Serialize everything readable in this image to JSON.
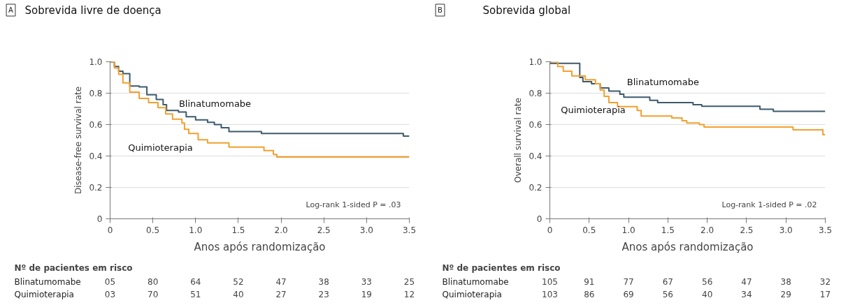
{
  "chart_data": [
    {
      "type": "step",
      "title": "Sobrevida livre de doença",
      "xlabel": "Anos após randomização",
      "ylabel": "Disease-free survival rate",
      "xlim": [
        0,
        3.5
      ],
      "ylim": [
        0,
        1.0
      ],
      "xticks": [
        0,
        0.5,
        {
          "value": 1,
          "label": "1.0"
        },
        1.5,
        {
          "value": 2,
          "label": "2.0"
        },
        2.5,
        {
          "value": 3,
          "label": "3.0"
        },
        3.5
      ],
      "yticks": [
        0,
        0.2,
        0.4,
        0.6,
        0.8,
        {
          "value": 1,
          "label": "1.0"
        }
      ],
      "grid": "y",
      "annotations": [
        "A",
        "Log-rank 1-sided P = .03",
        "Nº de pacientes em risco",
        "Blinatumomabe 05 80 64 52 47 38 33 25",
        "Quimioterapia 03 70 51 40 27 23 19 12"
      ],
      "series": [
        {
          "name": "Blinatumomabe",
          "color": "#3d5a6c",
          "x": [
            0,
            0.05,
            0.1,
            0.15,
            0.23,
            0.34,
            0.43,
            0.54,
            0.62,
            0.66,
            0.8,
            0.89,
            1.0,
            1.14,
            1.22,
            1.3,
            1.39,
            1.77,
            3.43,
            3.5
          ],
          "values": [
            1.0,
            0.97,
            0.94,
            0.925,
            0.846,
            0.84,
            0.79,
            0.76,
            0.727,
            0.69,
            0.68,
            0.65,
            0.63,
            0.615,
            0.6,
            0.58,
            0.556,
            0.543,
            0.527,
            0.527
          ]
        },
        {
          "name": "Quimioterapia",
          "color": "#f2a02e",
          "x": [
            0,
            0.05,
            0.1,
            0.15,
            0.23,
            0.34,
            0.45,
            0.56,
            0.65,
            0.73,
            0.84,
            0.87,
            0.92,
            1.03,
            1.14,
            1.39,
            1.8,
            1.91,
            1.95,
            3.5
          ],
          "values": [
            1.0,
            0.96,
            0.92,
            0.866,
            0.807,
            0.767,
            0.74,
            0.708,
            0.668,
            0.635,
            0.61,
            0.57,
            0.543,
            0.503,
            0.483,
            0.457,
            0.434,
            0.41,
            0.393,
            0.393
          ]
        }
      ]
    },
    {
      "type": "step",
      "title": "Sobrevida global",
      "xlabel": "Anos após randomização",
      "ylabel": "Overall survival rate",
      "xlim": [
        0,
        3.5
      ],
      "ylim": [
        0,
        1.0
      ],
      "xticks": [
        0,
        0.5,
        {
          "value": 1,
          "label": "1.0"
        },
        1.5,
        {
          "value": 2,
          "label": "2.0"
        },
        2.5,
        {
          "value": 3,
          "label": "3.0"
        },
        3.5
      ],
      "yticks": [
        0,
        0.2,
        0.4,
        0.6,
        0.8,
        {
          "value": 1,
          "label": "1.0"
        }
      ],
      "grid": "y",
      "annotations": [
        "B",
        "Log-rank 1-sided P = .02",
        "Nº de pacientes em risco",
        "Blinatumomabe 105 91 77 67 56 47 38 32",
        "Quimioterapia 103 86 69 56 40 34 29 17"
      ],
      "series": [
        {
          "name": "Blinatumomabe",
          "color": "#3d5a6c",
          "x": [
            0,
            0.38,
            0.42,
            0.53,
            0.64,
            0.75,
            0.89,
            0.94,
            1.27,
            1.37,
            1.82,
            1.93,
            2.67,
            2.84,
            3.5
          ],
          "values": [
            0.99,
            0.9,
            0.873,
            0.86,
            0.833,
            0.813,
            0.793,
            0.774,
            0.754,
            0.74,
            0.727,
            0.717,
            0.698,
            0.684,
            0.684
          ]
        },
        {
          "name": "Quimioterapia",
          "color": "#f2a02e",
          "x": [
            0,
            0.1,
            0.17,
            0.28,
            0.45,
            0.58,
            0.64,
            0.69,
            0.75,
            0.86,
            1.11,
            1.16,
            1.55,
            1.68,
            1.74,
            1.9,
            1.96,
            3.09,
            3.47,
            3.5
          ],
          "values": [
            1.0,
            0.97,
            0.94,
            0.91,
            0.886,
            0.86,
            0.82,
            0.78,
            0.74,
            0.714,
            0.69,
            0.655,
            0.642,
            0.625,
            0.61,
            0.6,
            0.585,
            0.567,
            0.536,
            0.536
          ]
        }
      ]
    }
  ]
}
